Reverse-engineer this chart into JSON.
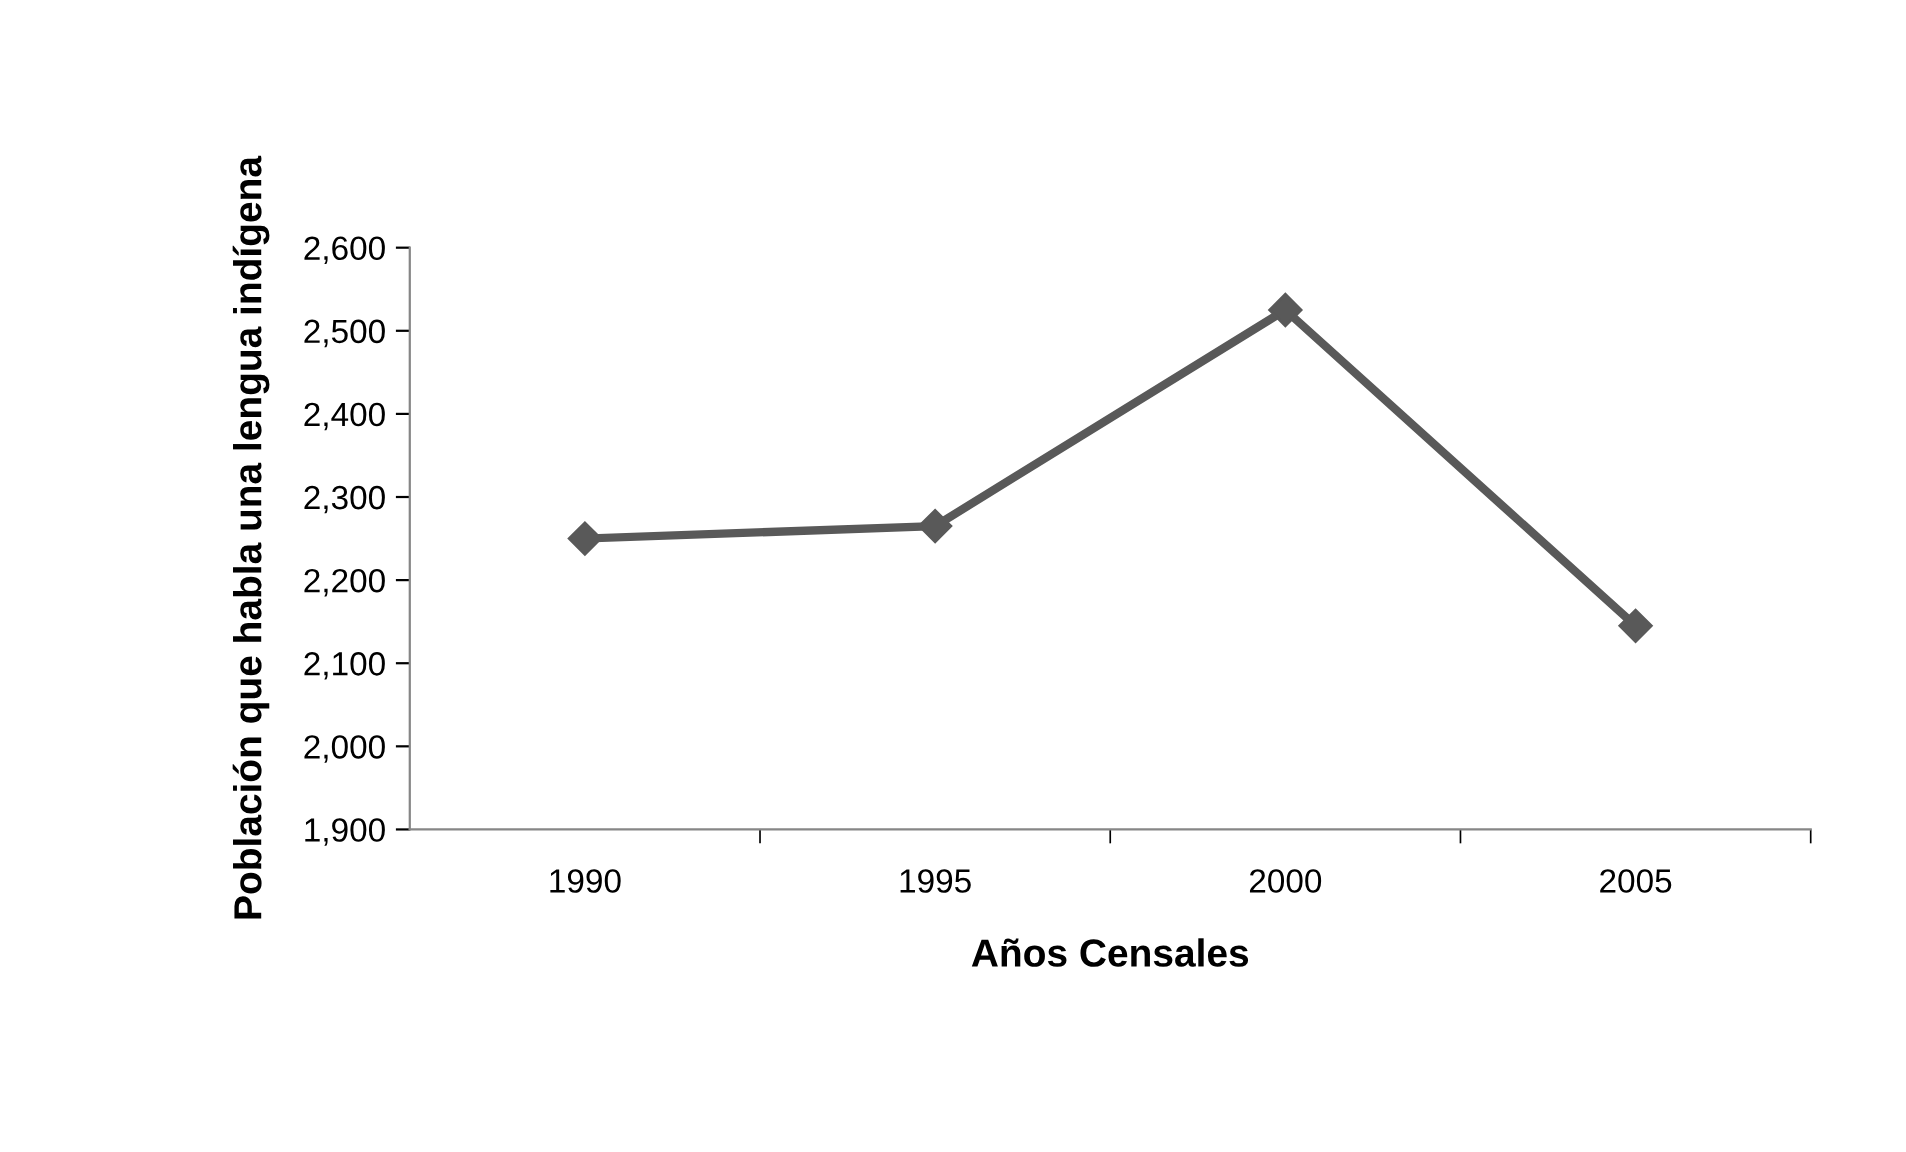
{
  "chart_data": {
    "type": "line",
    "xlabel": "Años Censales",
    "ylabel": "Población que habla una lengua indígena",
    "categories": [
      "1990",
      "1995",
      "2000",
      "2005"
    ],
    "series": [
      {
        "color": "#595959",
        "values": [
          2250,
          2265,
          2525,
          2145
        ]
      }
    ],
    "ylim": [
      1900,
      2600
    ],
    "yticks": [
      {
        "value": 1900,
        "label": "1,900"
      },
      {
        "value": 2000,
        "label": "2,000"
      },
      {
        "value": 2100,
        "label": "2,100"
      },
      {
        "value": 2200,
        "label": "2,200"
      },
      {
        "value": 2300,
        "label": "2,300"
      },
      {
        "value": 2400,
        "label": "2,400"
      },
      {
        "value": 2500,
        "label": "2,500"
      },
      {
        "value": 2600,
        "label": "2,600"
      }
    ],
    "marker": "diamond",
    "line_style": "solid",
    "grid": false,
    "legend": false
  }
}
